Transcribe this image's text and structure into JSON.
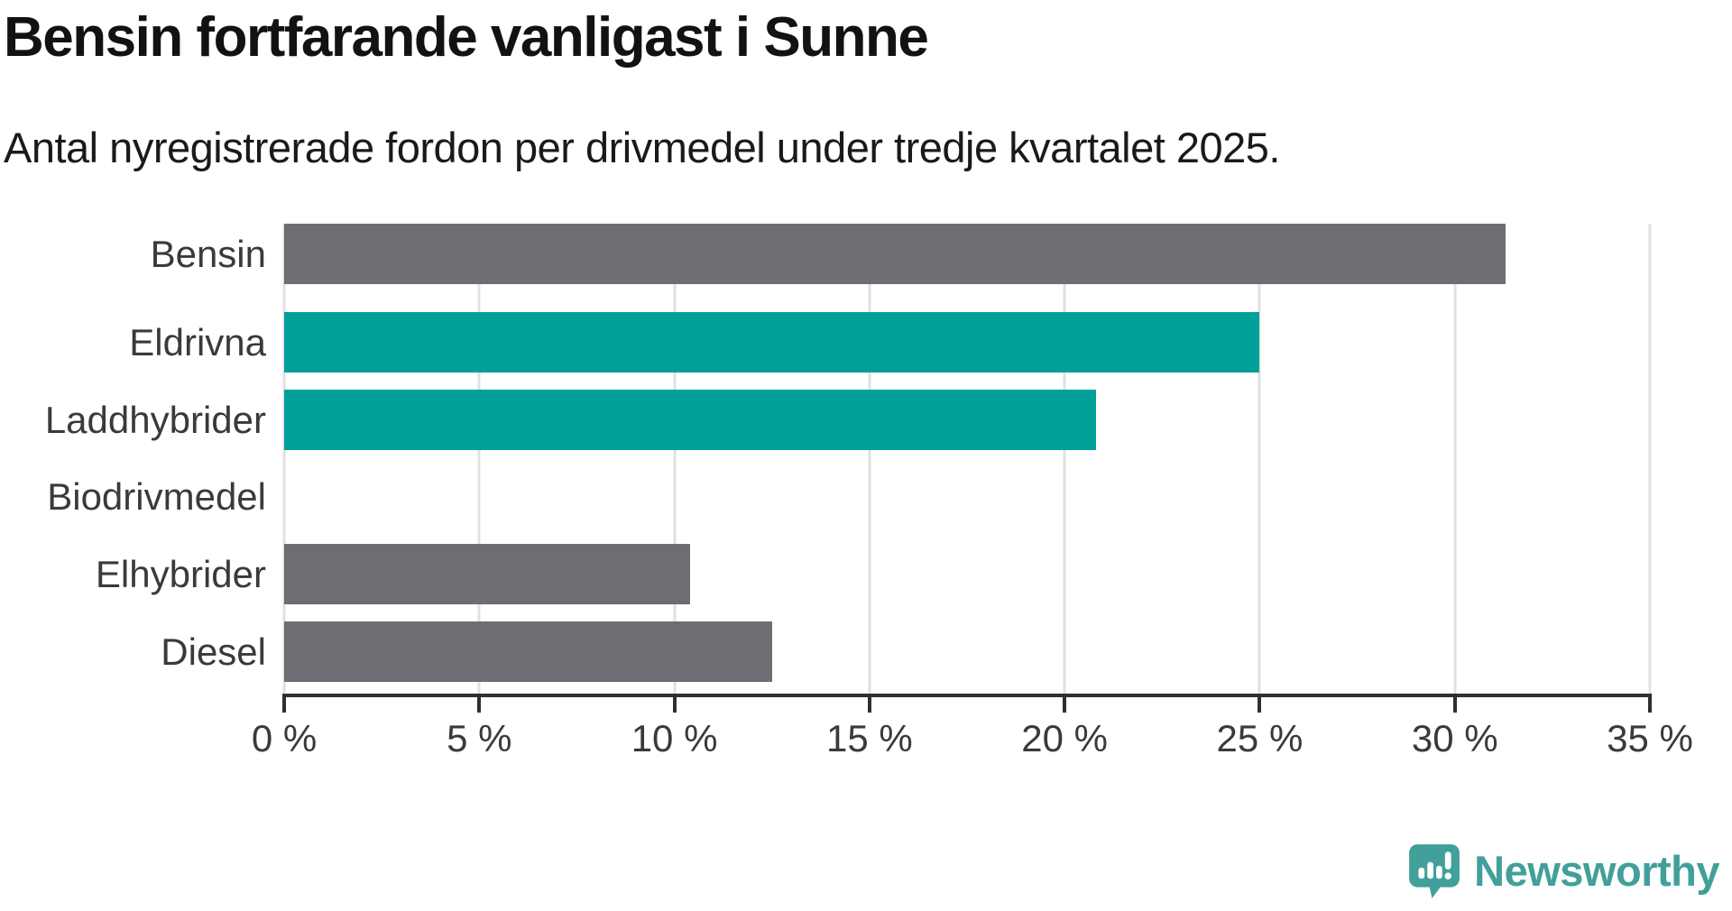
{
  "header": {
    "title": "Bensin fortfarande vanligast i Sunne",
    "subtitle": "Antal nyregistrerade fordon per drivmedel under tredje kvartalet 2025."
  },
  "chart_data": {
    "type": "bar",
    "orientation": "horizontal",
    "title": "Bensin fortfarande vanligast i Sunne",
    "subtitle": "Antal nyregistrerade fordon per drivmedel under tredje kvartalet 2025.",
    "categories": [
      "Eldrivna",
      "Laddhybrider",
      "Biodrivmedel",
      "Elhybrider",
      "Diesel",
      "Bensin"
    ],
    "values": [
      25.0,
      20.8,
      0,
      10.4,
      12.5,
      31.3
    ],
    "unit": "%",
    "xlabel": "",
    "ylabel": "",
    "xlim": [
      0,
      35
    ],
    "xticks": [
      0,
      5,
      10,
      15,
      20,
      25,
      30,
      35
    ],
    "xtick_labels": [
      "0 %",
      "5 %",
      "10 %",
      "15 %",
      "20 %",
      "25 %",
      "30 %",
      "35 %"
    ],
    "bar_colors": [
      "#00a099",
      "#00a099",
      "#6d6d73",
      "#6d6d73",
      "#6d6d73",
      "#6d6d73"
    ],
    "grid": true,
    "legend": false
  },
  "colors": {
    "teal": "#00a099",
    "gray": "#6d6d73",
    "gridline": "#e0e0e0",
    "axis": "#2f2f2f",
    "text": "#3a3a3a",
    "title": "#121212",
    "logo": "#41a099"
  },
  "footer": {
    "brand": "Newsworthy"
  }
}
